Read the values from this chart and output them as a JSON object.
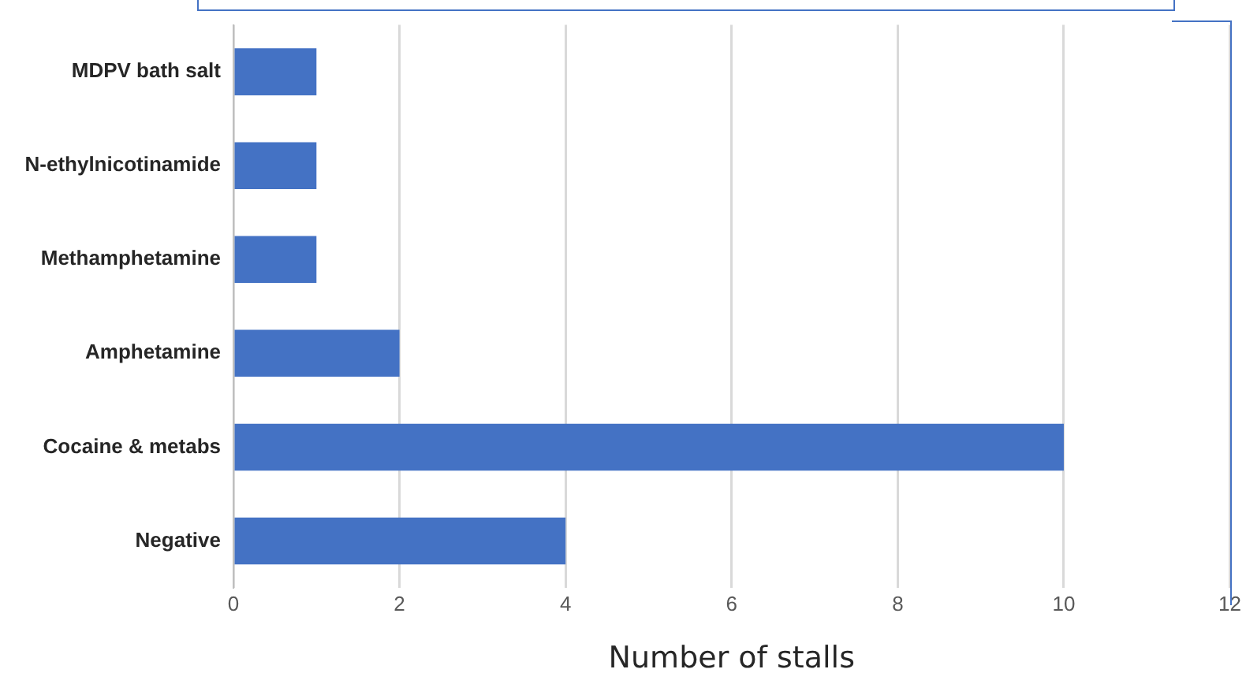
{
  "chart_data": {
    "type": "bar",
    "orientation": "horizontal",
    "xlabel": "Number of stalls",
    "categories": [
      "MDPV bath salt",
      "N-ethylnicotinamide",
      "Methamphetamine",
      "Amphetamine",
      "Cocaine & metabs",
      "Negative"
    ],
    "values": [
      1,
      1,
      1,
      2,
      10,
      4
    ],
    "color": "#4472c4",
    "xlim": [
      0,
      12
    ],
    "xticks": [
      0,
      2,
      4,
      6,
      8,
      10,
      12
    ],
    "grid": "x"
  }
}
